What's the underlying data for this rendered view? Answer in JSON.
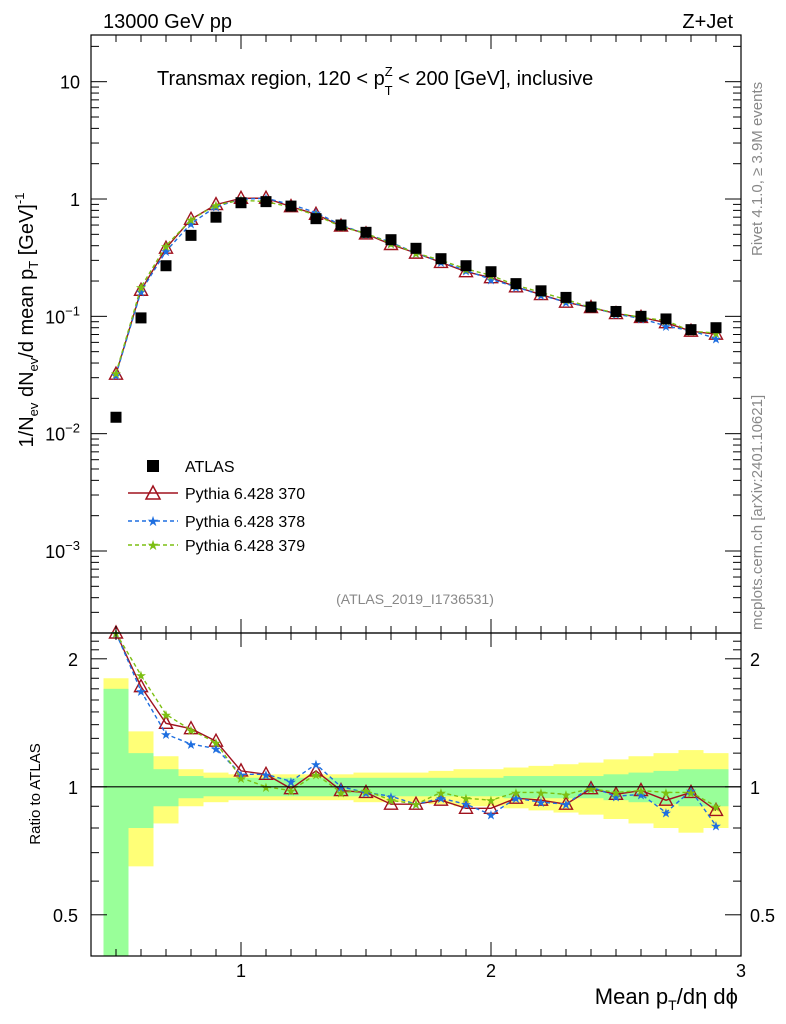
{
  "chart_data": {
    "type": "line",
    "header_left": "13000 GeV pp",
    "header_right": "Z+Jet",
    "title": "Transmax region, 120 < p_T^Z < 200 [GeV], inclusive",
    "title_parts": {
      "a": "Transmax region, 120 < p",
      "sup": "Z",
      "sub": "T",
      "b": " < 200 [GeV], inclusive"
    },
    "ylabel_parts": {
      "a": "1/N",
      "s1": "ev",
      "b": " dN",
      "s2": "ev",
      "c": "/d mean p",
      "s3": "T",
      "d": " [GeV]",
      "e": "-1"
    },
    "xlabel_parts": {
      "a": "Mean p",
      "s1": "T",
      "b": "/dη dϕ"
    },
    "ratio_ylabel": "Ratio to ATLAS",
    "side_text_top": "Rivet 4.1.0, ≥ 3.9M events",
    "side_text_bottom": "mcplots.cern.ch [arXiv:2401.10621]",
    "watermark": "(ATLAS_2019_I1736531)",
    "xlim": [
      0.4,
      3.0
    ],
    "ylim": [
      0.0002,
      25
    ],
    "ratio_ylim": [
      0.4,
      2.3
    ],
    "x_ticks": [
      "1",
      "2",
      "3"
    ],
    "y_ticks": [
      {
        "v": 10,
        "base": "10",
        "exp": ""
      },
      {
        "v": 1,
        "base": "1",
        "exp": ""
      },
      {
        "v": 0.1,
        "base": "10",
        "exp": "−1"
      },
      {
        "v": 0.01,
        "base": "10",
        "exp": "−2"
      },
      {
        "v": 0.001,
        "base": "10",
        "exp": "−3"
      }
    ],
    "ratio_ticks": [
      {
        "v": 2,
        "label": "2"
      },
      {
        "v": 1,
        "label": "1"
      },
      {
        "v": 0.5,
        "label": "0.5"
      }
    ],
    "x": [
      0.5,
      0.6,
      0.7,
      0.8,
      0.9,
      1.0,
      1.1,
      1.2,
      1.3,
      1.4,
      1.5,
      1.6,
      1.7,
      1.8,
      1.9,
      2.0,
      2.1,
      2.2,
      2.3,
      2.4,
      2.5,
      2.6,
      2.7,
      2.8,
      2.9
    ],
    "data": {
      "name": "ATLAS",
      "values": [
        0.0138,
        0.097,
        0.27,
        0.49,
        0.7,
        0.93,
        0.95,
        0.87,
        0.68,
        0.6,
        0.52,
        0.45,
        0.38,
        0.31,
        0.27,
        0.24,
        0.19,
        0.165,
        0.145,
        0.12,
        0.11,
        0.1,
        0.095,
        0.077,
        0.08
      ],
      "band_green": [
        0.7,
        0.2,
        0.1,
        0.06,
        0.05,
        0.05,
        0.05,
        0.05,
        0.05,
        0.05,
        0.05,
        0.05,
        0.05,
        0.05,
        0.05,
        0.05,
        0.06,
        0.06,
        0.06,
        0.06,
        0.07,
        0.08,
        0.09,
        0.1,
        0.1
      ],
      "band_yellow": [
        0.8,
        0.35,
        0.18,
        0.1,
        0.08,
        0.07,
        0.07,
        0.07,
        0.07,
        0.07,
        0.08,
        0.08,
        0.08,
        0.09,
        0.1,
        0.1,
        0.11,
        0.12,
        0.13,
        0.14,
        0.16,
        0.18,
        0.2,
        0.22,
        0.2
      ]
    },
    "series": [
      {
        "name": "Pythia 6.428 370",
        "color": "#a0121e",
        "marker": "triangle",
        "dash": "",
        "ratio": [
          2.33,
          1.72,
          1.41,
          1.37,
          1.28,
          1.09,
          1.07,
          0.99,
          1.09,
          0.98,
          0.97,
          0.91,
          0.91,
          0.93,
          0.89,
          0.89,
          0.94,
          0.93,
          0.91,
          0.99,
          0.96,
          0.98,
          0.93,
          0.97,
          0.88
        ]
      },
      {
        "name": "Pythia 6.428 378",
        "color": "#1f6fe0",
        "marker": "star",
        "dash": "4,3",
        "ratio": [
          2.3,
          1.68,
          1.33,
          1.26,
          1.23,
          1.07,
          1.07,
          1.03,
          1.13,
          1.0,
          0.97,
          0.95,
          0.91,
          0.94,
          0.91,
          0.86,
          0.94,
          0.92,
          0.91,
          1.0,
          0.95,
          0.96,
          0.87,
          0.98,
          0.81
        ]
      },
      {
        "name": "Pythia 6.428 379",
        "color": "#7cbf12",
        "marker": "star",
        "dash": "4,3",
        "ratio": [
          2.38,
          1.83,
          1.48,
          1.36,
          1.27,
          1.05,
          1.0,
          0.98,
          1.07,
          0.97,
          0.98,
          0.93,
          0.91,
          0.97,
          0.94,
          0.93,
          0.97,
          0.97,
          0.96,
          0.99,
          0.97,
          0.98,
          0.97,
          0.97,
          0.9
        ]
      }
    ]
  }
}
